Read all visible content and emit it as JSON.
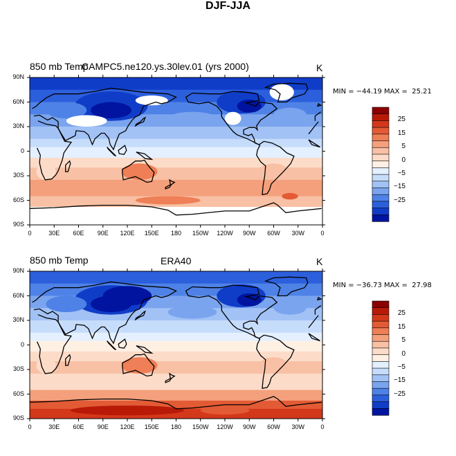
{
  "title": "DJF-JJA",
  "panels": [
    {
      "left_label": "850 mb Temp",
      "center_label": "CAMPC5.ne120.ys.30lev.01 (yrs 2000)",
      "units": "K",
      "min_max": "MIN = −44.19 MAX =  25.21"
    },
    {
      "left_label": "850 mb Temp",
      "center_label": "ERA40",
      "units": "K",
      "min_max": "MIN = −36.73 MAX =  27.98"
    }
  ],
  "lat_labels": [
    "90N",
    "60N",
    "30N",
    "0",
    "30S",
    "60S",
    "90S"
  ],
  "lon_labels": [
    "0",
    "30E",
    "60E",
    "90E",
    "120E",
    "150E",
    "180",
    "150W",
    "120W",
    "90W",
    "60W",
    "30W",
    "0"
  ],
  "colorbar": {
    "labels": [
      "25",
      "15",
      "5",
      "0",
      "−5",
      "−15",
      "−25"
    ],
    "colors": [
      "#8b0000",
      "#b81a08",
      "#d4381a",
      "#e35b35",
      "#ee7f56",
      "#f4a07c",
      "#f8c0a4",
      "#fcdcc8",
      "#fff0e4",
      "#e4f0ff",
      "#c6dcfb",
      "#a2c2f5",
      "#7aa4ee",
      "#4f82e6",
      "#2c5fdc",
      "#103dc8",
      "#0014a0"
    ]
  },
  "color_palette": {
    "land_outline": "#000000",
    "missing_data": "#ffffff"
  }
}
